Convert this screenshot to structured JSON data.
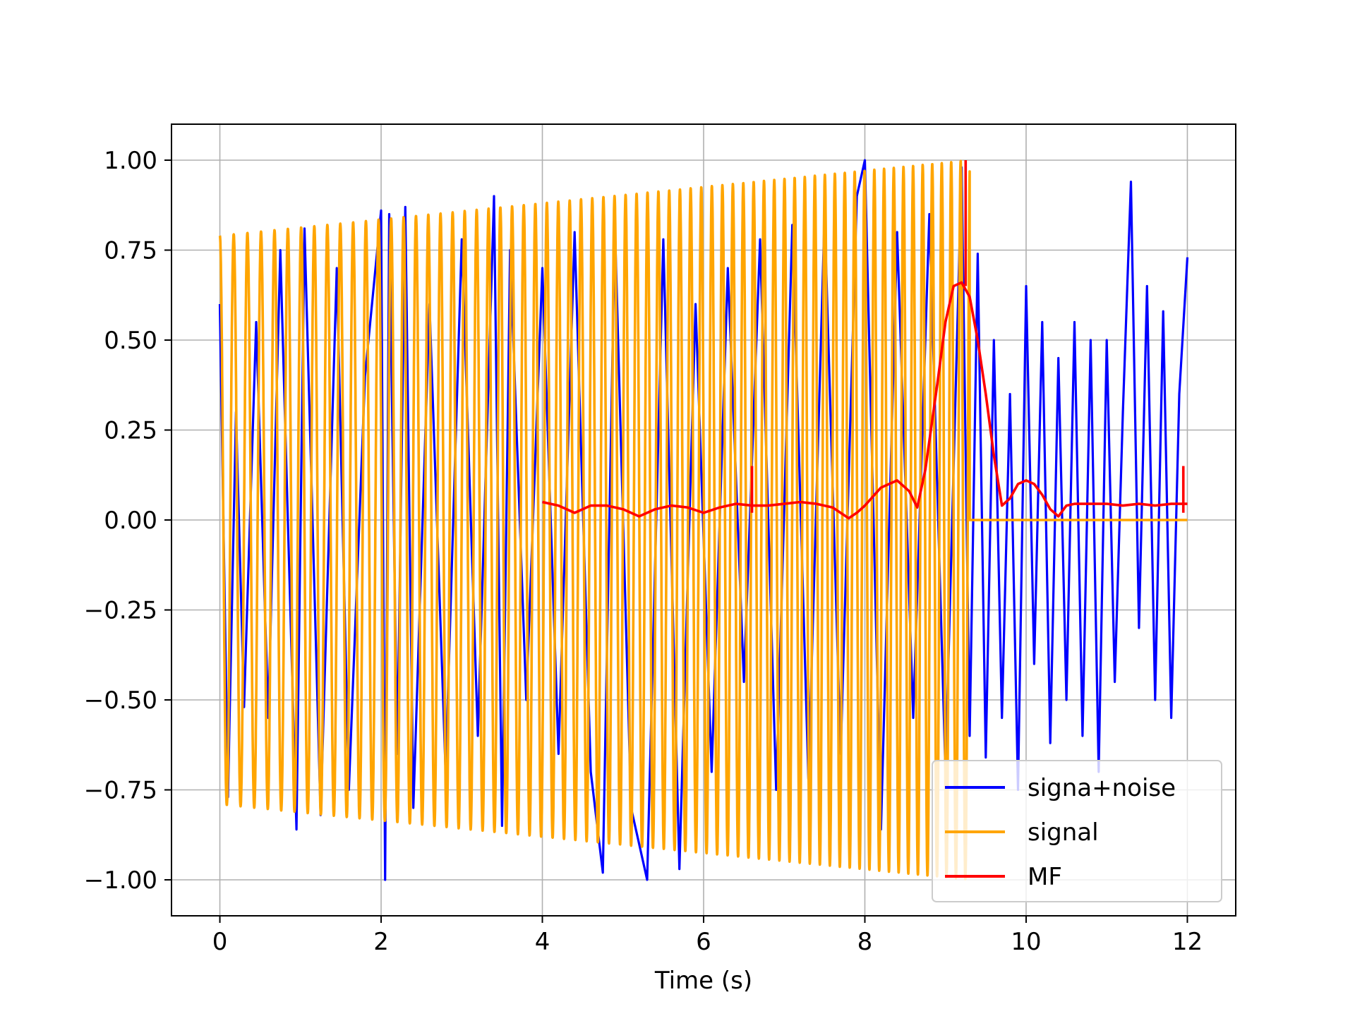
{
  "chart_data": {
    "type": "line",
    "title": "",
    "xlabel": "Time (s)",
    "ylabel": "",
    "xlim": [
      -0.6,
      12.6
    ],
    "ylim": [
      -1.1,
      1.1
    ],
    "x_ticks": [
      0,
      2,
      4,
      6,
      8,
      10,
      12
    ],
    "x_tick_labels": [
      "0",
      "2",
      "4",
      "6",
      "8",
      "10",
      "12"
    ],
    "y_ticks": [
      1.0,
      0.75,
      0.5,
      0.25,
      0.0,
      -0.25,
      -0.5,
      -0.75,
      -1.0
    ],
    "y_tick_labels": [
      "1.00",
      "0.75",
      "0.50",
      "0.25",
      "0.00",
      "−0.25",
      "−0.50",
      "−0.75",
      "−1.00"
    ],
    "grid": true,
    "legend_position": "lower right",
    "series": [
      {
        "name": "signa+noise",
        "color": "#0000ff",
        "description_range": [
          0,
          12
        ],
        "x": [
          0,
          0.1,
          0.2,
          0.3,
          0.45,
          0.6,
          0.75,
          0.95,
          1.05,
          1.25,
          1.45,
          1.6,
          1.8,
          2.0,
          2.05,
          2.1,
          2.2,
          2.3,
          2.4,
          2.6,
          2.8,
          3.0,
          3.2,
          3.4,
          3.5,
          3.6,
          3.8,
          4.0,
          4.2,
          4.4,
          4.6,
          4.75,
          4.9,
          5.1,
          5.3,
          5.5,
          5.7,
          5.9,
          6.1,
          6.3,
          6.5,
          6.7,
          6.9,
          7.1,
          7.3,
          7.5,
          7.7,
          7.9,
          8.0,
          8.2,
          8.4,
          8.6,
          8.8,
          9.0,
          9.2,
          9.3,
          9.4,
          9.5,
          9.6,
          9.7,
          9.8,
          9.9,
          10.0,
          10.1,
          10.2,
          10.3,
          10.4,
          10.5,
          10.6,
          10.7,
          10.8,
          10.9,
          11.0,
          11.1,
          11.2,
          11.3,
          11.4,
          11.5,
          11.6,
          11.7,
          11.8,
          11.9,
          12.0
        ],
        "y": [
          0.6,
          -0.77,
          0.3,
          -0.52,
          0.55,
          -0.55,
          0.75,
          -0.86,
          0.81,
          -0.82,
          0.7,
          -0.75,
          0.4,
          0.86,
          -1.0,
          0.85,
          -0.65,
          0.87,
          -0.8,
          0.6,
          -0.7,
          0.78,
          -0.6,
          0.9,
          -0.85,
          0.75,
          -0.5,
          0.7,
          -0.65,
          0.8,
          -0.7,
          -0.98,
          0.82,
          -0.8,
          -1.0,
          0.78,
          -0.97,
          0.6,
          -0.7,
          0.7,
          -0.45,
          0.78,
          -0.75,
          0.82,
          -0.72,
          0.85,
          -0.65,
          0.9,
          1.0,
          -0.86,
          0.8,
          -0.55,
          0.85,
          -0.7,
          0.98,
          -0.6,
          0.74,
          -0.66,
          0.5,
          -0.55,
          0.35,
          -0.75,
          0.65,
          -0.4,
          0.55,
          -0.62,
          0.45,
          -0.5,
          0.55,
          -0.6,
          0.5,
          -0.7,
          0.5,
          -0.45,
          0.3,
          0.94,
          -0.3,
          0.65,
          -0.5,
          0.58,
          -0.55,
          0.35,
          0.73
        ]
      },
      {
        "name": "signal",
        "color": "#ffa500",
        "t_end": 9.3,
        "amplitude_start": 0.79,
        "amplitude_end": 1.0,
        "after_end_value": 0.0,
        "x_end": 12.0,
        "freq_start_hz": 5.8,
        "freq_end_hz": 8.6
      },
      {
        "name": "MF",
        "color": "#ff0000",
        "x": [
          4.0,
          4.2,
          4.4,
          4.6,
          4.8,
          5.0,
          5.2,
          5.4,
          5.6,
          5.8,
          6.0,
          6.2,
          6.4,
          6.6,
          6.8,
          7.0,
          7.2,
          7.4,
          7.6,
          7.8,
          7.9,
          8.0,
          8.2,
          8.4,
          8.55,
          8.65,
          8.75,
          8.9,
          9.0,
          9.1,
          9.2,
          9.3,
          9.4,
          9.5,
          9.6,
          9.7,
          9.8,
          9.9,
          10.0,
          10.1,
          10.2,
          10.3,
          10.4,
          10.5,
          10.6,
          10.7,
          10.8,
          11.0,
          11.2,
          11.4,
          11.6,
          11.8,
          12.0
        ],
        "y": [
          0.05,
          0.04,
          0.02,
          0.04,
          0.04,
          0.03,
          0.01,
          0.03,
          0.04,
          0.035,
          0.02,
          0.035,
          0.045,
          0.04,
          0.04,
          0.045,
          0.05,
          0.045,
          0.035,
          0.005,
          0.02,
          0.04,
          0.09,
          0.11,
          0.08,
          0.035,
          0.14,
          0.38,
          0.55,
          0.65,
          0.66,
          0.62,
          0.5,
          0.35,
          0.18,
          0.04,
          0.06,
          0.1,
          0.11,
          0.1,
          0.07,
          0.03,
          0.01,
          0.04,
          0.045,
          0.045,
          0.045,
          0.045,
          0.04,
          0.045,
          0.04,
          0.045,
          0.045
        ],
        "spikes": [
          {
            "x": 6.6,
            "low": 0.02,
            "high": 0.15
          },
          {
            "x": 9.25,
            "low": 0.65,
            "high": 1.0
          },
          {
            "x": 11.95,
            "low": 0.02,
            "high": 0.15
          }
        ]
      }
    ]
  }
}
